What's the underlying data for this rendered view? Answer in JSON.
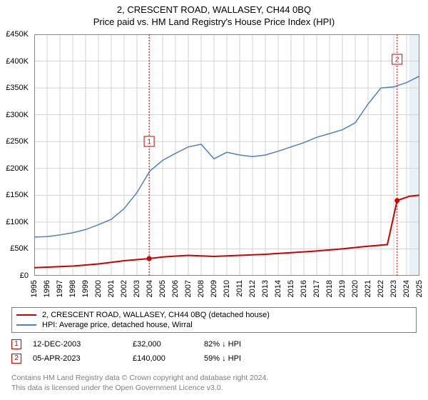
{
  "title": {
    "line1": "2, CRESCENT ROAD, WALLASEY, CH44 0BQ",
    "line2": "Price paid vs. HM Land Registry's House Price Index (HPI)"
  },
  "chart": {
    "type": "line",
    "background_color": "#ffffff",
    "grid_color": "#d3d3d3",
    "forecast_band_color": "#eaf0f8",
    "axis_color": "#000000",
    "forecast_start_year": 2024.2,
    "y_axis": {
      "min": 0,
      "max": 450000,
      "step": 50000,
      "ticks": [
        0,
        50000,
        100000,
        150000,
        200000,
        250000,
        300000,
        350000,
        400000,
        450000
      ],
      "labels": [
        "£0",
        "£50K",
        "£100K",
        "£150K",
        "£200K",
        "£250K",
        "£300K",
        "£350K",
        "£400K",
        "£450K"
      ],
      "fontsize": 11
    },
    "x_axis": {
      "min": 1995,
      "max": 2025,
      "step": 1,
      "ticks": [
        1995,
        1996,
        1997,
        1998,
        1999,
        2000,
        2001,
        2002,
        2003,
        2004,
        2005,
        2006,
        2007,
        2008,
        2009,
        2010,
        2011,
        2012,
        2013,
        2014,
        2015,
        2016,
        2017,
        2018,
        2019,
        2020,
        2021,
        2022,
        2023,
        2024,
        2025
      ],
      "fontsize": 11
    },
    "series": [
      {
        "name": "price_paid",
        "label": "2, CRESCENT ROAD, WALLASEY, CH44 0BQ (detached house)",
        "color": "#cc0000",
        "line_width": 2,
        "data": [
          [
            1995,
            15000
          ],
          [
            1998,
            18000
          ],
          [
            2000,
            22000
          ],
          [
            2002,
            28000
          ],
          [
            2003.95,
            32000
          ],
          [
            2005,
            35000
          ],
          [
            2007,
            38000
          ],
          [
            2009,
            36000
          ],
          [
            2011,
            38000
          ],
          [
            2013,
            40000
          ],
          [
            2015,
            43000
          ],
          [
            2017,
            46000
          ],
          [
            2019,
            50000
          ],
          [
            2021,
            55000
          ],
          [
            2022.5,
            58000
          ],
          [
            2023.26,
            140000
          ],
          [
            2024.2,
            148000
          ],
          [
            2025,
            150000
          ]
        ],
        "events": [
          {
            "n": "1",
            "year": 2003.95,
            "value": 32000,
            "marker_y": 150
          },
          {
            "n": "2",
            "year": 2023.26,
            "value": 140000,
            "marker_y": 35
          }
        ]
      },
      {
        "name": "hpi",
        "label": "HPI: Average price, detached house, Wirral",
        "color": "#4f81bd",
        "line_width": 1.5,
        "data": [
          [
            1995,
            72000
          ],
          [
            1996,
            73000
          ],
          [
            1997,
            76000
          ],
          [
            1998,
            80000
          ],
          [
            1999,
            86000
          ],
          [
            2000,
            95000
          ],
          [
            2001,
            105000
          ],
          [
            2002,
            125000
          ],
          [
            2003,
            155000
          ],
          [
            2004,
            195000
          ],
          [
            2005,
            215000
          ],
          [
            2006,
            228000
          ],
          [
            2007,
            240000
          ],
          [
            2008,
            245000
          ],
          [
            2009,
            218000
          ],
          [
            2010,
            230000
          ],
          [
            2011,
            225000
          ],
          [
            2012,
            222000
          ],
          [
            2013,
            225000
          ],
          [
            2014,
            232000
          ],
          [
            2015,
            240000
          ],
          [
            2016,
            248000
          ],
          [
            2017,
            258000
          ],
          [
            2018,
            265000
          ],
          [
            2019,
            272000
          ],
          [
            2020,
            285000
          ],
          [
            2021,
            320000
          ],
          [
            2022,
            350000
          ],
          [
            2023,
            352000
          ],
          [
            2024,
            360000
          ],
          [
            2025,
            372000
          ]
        ]
      }
    ]
  },
  "legend": {
    "items": [
      {
        "color": "#cc0000",
        "label": "2, CRESCENT ROAD, WALLASEY, CH44 0BQ (detached house)"
      },
      {
        "color": "#4f81bd",
        "label": "HPI: Average price, detached house, Wirral"
      }
    ]
  },
  "events_table": {
    "rows": [
      {
        "n": "1",
        "marker_color": "#cc0000",
        "date": "12-DEC-2003",
        "price": "£32,000",
        "pct": "82% ↓ HPI"
      },
      {
        "n": "2",
        "marker_color": "#cc0000",
        "date": "05-APR-2023",
        "price": "£140,000",
        "pct": "59% ↓ HPI"
      }
    ]
  },
  "footer": {
    "line1": "Contains HM Land Registry data © Crown copyright and database right 2024.",
    "line2": "This data is licensed under the Open Government Licence v3.0."
  }
}
